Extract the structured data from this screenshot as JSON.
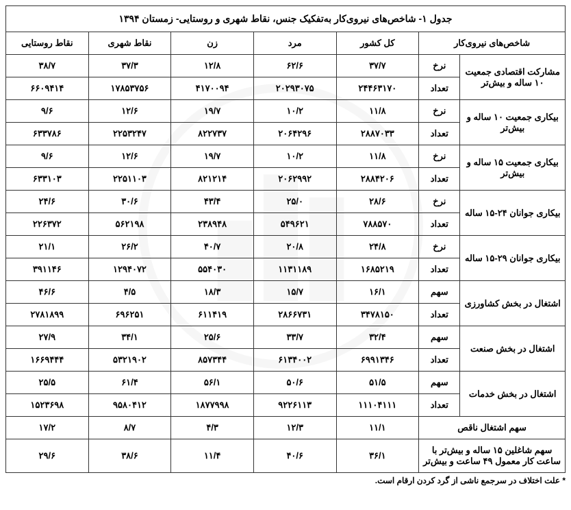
{
  "title": "جدول ۱- شاخص‌های نیروی‌کار به‌تفکیک جنس، نقاط شهری و روستایی- زمستان ۱۳۹۴",
  "footnote": "* علت اختلاف در سرجمع ناشی از گرد کردن ارقام است.",
  "headers": {
    "indicator": "شاخص‌های نیروی‌کار",
    "country": "کل کشور",
    "male": "مرد",
    "female": "زن",
    "urban": "نقاط شهری",
    "rural": "نقاط روستایی"
  },
  "sublabels": {
    "rate": "نرخ",
    "count": "تعداد",
    "share": "سهم"
  },
  "rows": [
    {
      "label": "مشارکت اقتصادی جمعیت ۱۰ ساله و بیش‌تر",
      "sub": [
        {
          "type": "rate",
          "country": "۳۷/۷",
          "male": "۶۲/۶",
          "female": "۱۲/۸",
          "urban": "۳۷/۳",
          "rural": "۳۸/۷"
        },
        {
          "type": "count",
          "country": "۲۴۴۶۳۱۷۰",
          "male": "۲۰۲۹۳۰۷۵",
          "female": "۴۱۷۰۰۹۴",
          "urban": "۱۷۸۵۳۷۵۶",
          "rural": "۶۶۰۹۴۱۴"
        }
      ]
    },
    {
      "label": "بیکاری جمعیت ۱۰ ساله و بیش‌تر",
      "sub": [
        {
          "type": "rate",
          "country": "۱۱/۸",
          "male": "۱۰/۲",
          "female": "۱۹/۷",
          "urban": "۱۲/۶",
          "rural": "۹/۶"
        },
        {
          "type": "count",
          "country": "۲۸۸۷۰۳۳",
          "male": "۲۰۶۴۲۹۶",
          "female": "۸۲۲۷۳۷",
          "urban": "۲۲۵۳۲۴۷",
          "rural": "۶۳۳۷۸۶"
        }
      ]
    },
    {
      "label": "بیکاری جمعیت ۱۵ ساله و بیش‌تر",
      "sub": [
        {
          "type": "rate",
          "country": "۱۱/۸",
          "male": "۱۰/۲",
          "female": "۱۹/۷",
          "urban": "۱۲/۶",
          "rural": "۹/۶"
        },
        {
          "type": "count",
          "country": "۲۸۸۴۲۰۶",
          "male": "۲۰۶۲۹۹۲",
          "female": "۸۲۱۲۱۴",
          "urban": "۲۲۵۱۱۰۳",
          "rural": "۶۳۳۱۰۳"
        }
      ]
    },
    {
      "label": "بیکاری جوانان ۲۴-۱۵ ساله",
      "sub": [
        {
          "type": "rate",
          "country": "۲۸/۶",
          "male": "۲۵/۰",
          "female": "۴۳/۴",
          "urban": "۳۰/۶",
          "rural": "۲۴/۶"
        },
        {
          "type": "count",
          "country": "۷۸۸۵۷۰",
          "male": "۵۴۹۶۲۱",
          "female": "۲۳۸۹۴۸",
          "urban": "۵۶۲۱۹۸",
          "rural": "۲۲۶۳۷۲"
        }
      ]
    },
    {
      "label": "بیکاری جوانان ۲۹-۱۵ ساله",
      "sub": [
        {
          "type": "rate",
          "country": "۲۴/۸",
          "male": "۲۰/۸",
          "female": "۴۰/۷",
          "urban": "۲۶/۲",
          "rural": "۲۱/۱"
        },
        {
          "type": "count",
          "country": "۱۶۸۵۲۱۹",
          "male": "۱۱۳۱۱۸۹",
          "female": "۵۵۴۰۳۰",
          "urban": "۱۲۹۴۰۷۲",
          "rural": "۳۹۱۱۴۶"
        }
      ]
    },
    {
      "label": "اشتغال در بخش کشاورزی",
      "sub": [
        {
          "type": "share",
          "country": "۱۶/۱",
          "male": "۱۵/۷",
          "female": "۱۸/۳",
          "urban": "۴/۵",
          "rural": "۴۶/۶"
        },
        {
          "type": "count",
          "country": "۳۴۷۸۱۵۰",
          "male": "۲۸۶۶۷۳۱",
          "female": "۶۱۱۴۱۹",
          "urban": "۶۹۶۲۵۱",
          "rural": "۲۷۸۱۸۹۹"
        }
      ]
    },
    {
      "label": "اشتغال در بخش صنعت",
      "sub": [
        {
          "type": "share",
          "country": "۳۲/۴",
          "male": "۳۳/۷",
          "female": "۲۵/۶",
          "urban": "۳۴/۱",
          "rural": "۲۷/۹"
        },
        {
          "type": "count",
          "country": "۶۹۹۱۳۴۶",
          "male": "۶۱۳۴۰۰۲",
          "female": "۸۵۷۳۴۴",
          "urban": "۵۳۲۱۹۰۲",
          "rural": "۱۶۶۹۴۴۴"
        }
      ]
    },
    {
      "label": "اشتغال در بخش خدمات",
      "sub": [
        {
          "type": "share",
          "country": "۵۱/۵",
          "male": "۵۰/۶",
          "female": "۵۶/۱",
          "urban": "۶۱/۴",
          "rural": "۲۵/۵"
        },
        {
          "type": "count",
          "country": "۱۱۱۰۴۱۱۱",
          "male": "۹۲۲۶۱۱۳",
          "female": "۱۸۷۷۹۹۸",
          "urban": "۹۵۸۰۴۱۲",
          "rural": "۱۵۲۳۶۹۸"
        }
      ]
    }
  ],
  "single_rows": [
    {
      "label": "سهم اشتغال ناقص",
      "country": "۱۱/۱",
      "male": "۱۲/۳",
      "female": "۴/۳",
      "urban": "۸/۷",
      "rural": "۱۷/۲"
    },
    {
      "label": "سهم شاغلین ۱۵ ساله و بیش‌تر با ساعت کار معمول ۴۹ ساعت و بیش‌تر",
      "country": "۳۶/۱",
      "male": "۴۰/۶",
      "female": "۱۱/۴",
      "urban": "۳۸/۶",
      "rural": "۲۹/۶"
    }
  ]
}
